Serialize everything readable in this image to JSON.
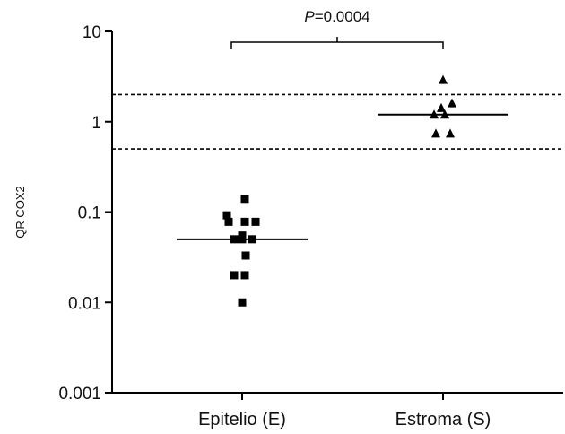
{
  "chart_data": {
    "type": "scatter",
    "title": "",
    "xlabel": "",
    "ylabel": "QR COX2",
    "y_scale": "log",
    "ylim": [
      0.001,
      10
    ],
    "y_ticks": [
      10,
      1,
      0.1,
      0.01,
      0.001
    ],
    "y_tick_labels": [
      "10",
      "1",
      "0.1",
      "0.01",
      "0.001"
    ],
    "categories": [
      "Epitelio (E)",
      "Estroma (S)"
    ],
    "series": [
      {
        "category": "Epitelio (E)",
        "marker": "square",
        "values": [
          0.14,
          0.092,
          0.078,
          0.078,
          0.078,
          0.055,
          0.05,
          0.05,
          0.05,
          0.033,
          0.02,
          0.02,
          0.01
        ],
        "median": 0.05
      },
      {
        "category": "Estroma (S)",
        "marker": "triangle",
        "values": [
          2.9,
          1.6,
          1.42,
          1.2,
          1.2,
          0.74,
          0.74
        ],
        "median": 1.2
      }
    ],
    "reference_lines": [
      2,
      0.5
    ],
    "annotation": {
      "p_label": "P",
      "p_value": "=0.0004"
    },
    "colors": {
      "marker": "#000000",
      "axis": "#000000"
    }
  }
}
